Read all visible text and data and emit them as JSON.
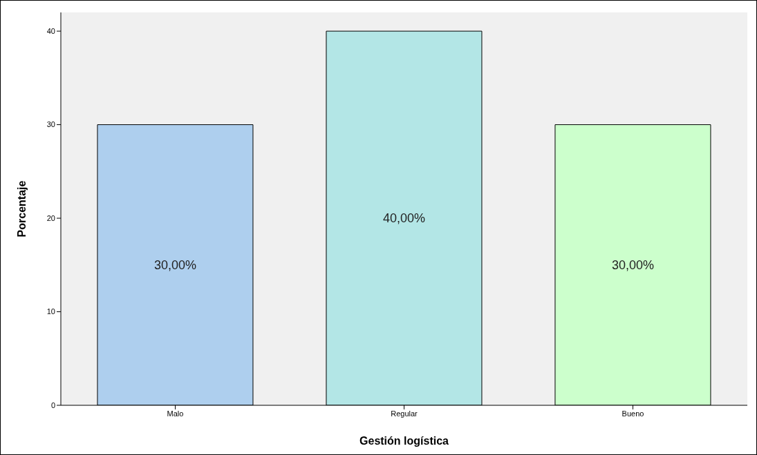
{
  "chart_data": {
    "type": "bar",
    "xlabel": "Gestión logística",
    "ylabel": "Porcentaje",
    "categories": [
      "Malo",
      "Regular",
      "Bueno"
    ],
    "values": [
      30,
      40,
      30
    ],
    "colors": [
      "#aecfee",
      "#b3e6e6",
      "#ccffcc"
    ],
    "value_labels": [
      "30,00%",
      "40,00%",
      "30,00%"
    ],
    "ylim": [
      0,
      42
    ],
    "yticks": [
      0,
      10,
      20,
      30,
      40
    ],
    "grid": false
  }
}
